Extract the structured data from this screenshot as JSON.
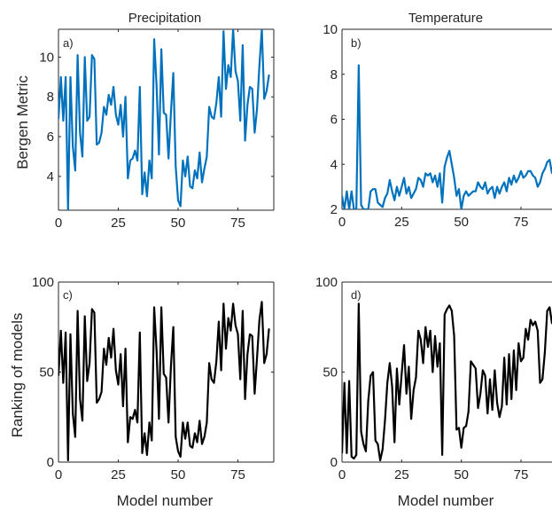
{
  "colors": {
    "blue": "#0072BD",
    "black": "#000000",
    "axis": "#262626"
  },
  "chart_data": [
    {
      "type": "line",
      "title": "Precipitation",
      "ylabel": "Bergen Metric",
      "xlabel": "",
      "panel_label": "a)",
      "xlim": [
        0,
        90
      ],
      "ylim": [
        2.3,
        11.4
      ],
      "xticks": [
        0,
        25,
        50,
        75
      ],
      "yticks": [
        4,
        6,
        8,
        10
      ],
      "grid": false,
      "color": "#0072BD",
      "series": [
        {
          "values": [
            6.9,
            9.0,
            6.8,
            9.0,
            2.3,
            9.0,
            5.5,
            4.3,
            10.1,
            6.2,
            5.0,
            10.0,
            6.8,
            7.0,
            10.1,
            9.9,
            5.6,
            5.7,
            6.2,
            7.5,
            7.1,
            8.1,
            7.6,
            8.5,
            7.1,
            6.6,
            7.6,
            6.0,
            8.0,
            3.9,
            4.8,
            4.9,
            5.3,
            4.8,
            8.5,
            3.1,
            4.2,
            3.0,
            4.8,
            3.9,
            10.9,
            8.6,
            5.1,
            10.4,
            7.2,
            7.1,
            4.9,
            7.2,
            9.2,
            4.5,
            2.8,
            2.5,
            4.8,
            4.0,
            5.0,
            3.5,
            3.4,
            4.3,
            3.9,
            5.2,
            3.7,
            4.4,
            5.0,
            7.5,
            7.0,
            6.9,
            7.7,
            9.0,
            7.0,
            11.3,
            8.4,
            9.6,
            9.0,
            11.4,
            9.3,
            8.8,
            6.8,
            10.6,
            5.8,
            7.6,
            8.5,
            8.4,
            6.2,
            7.4,
            9.6,
            11.4,
            7.9,
            8.3,
            9.1
          ]
        }
      ]
    },
    {
      "type": "line",
      "title": "Temperature",
      "ylabel": "",
      "xlabel": "",
      "panel_label": "b)",
      "xlim": [
        0,
        88
      ],
      "ylim": [
        2,
        10
      ],
      "xticks": [
        0,
        25,
        50,
        75
      ],
      "yticks": [
        2,
        4,
        6,
        8,
        10
      ],
      "grid": false,
      "color": "#0072BD",
      "series": [
        {
          "values": [
            2.6,
            2.0,
            2.8,
            2.0,
            2.8,
            2.0,
            2.0,
            8.4,
            2.2,
            2.0,
            2.0,
            2.0,
            2.8,
            2.9,
            2.9,
            2.3,
            2.2,
            2.1,
            2.5,
            2.7,
            3.3,
            2.8,
            2.4,
            3.0,
            2.6,
            3.0,
            3.4,
            2.7,
            3.0,
            2.5,
            2.7,
            2.9,
            3.4,
            3.3,
            3.0,
            3.6,
            3.5,
            3.6,
            3.2,
            3.5,
            3.0,
            3.6,
            2.3,
            3.9,
            4.3,
            4.6,
            4.0,
            3.4,
            2.6,
            2.9,
            2.0,
            2.6,
            2.8,
            2.6,
            2.7,
            2.8,
            2.8,
            3.2,
            3.0,
            2.9,
            3.2,
            2.7,
            2.9,
            3.0,
            2.5,
            3.0,
            2.7,
            3.0,
            3.2,
            2.8,
            3.4,
            3.1,
            3.5,
            3.2,
            3.4,
            3.7,
            3.4,
            3.5,
            3.7,
            3.7,
            3.5,
            3.4,
            3.0,
            3.2,
            3.6,
            3.8,
            4.1,
            4.2,
            3.6
          ]
        }
      ]
    },
    {
      "type": "line",
      "title": "",
      "ylabel": "Ranking of models",
      "xlabel": "Model number",
      "panel_label": "c)",
      "xlim": [
        0,
        90
      ],
      "ylim": [
        0,
        100
      ],
      "xticks": [
        0,
        25,
        50,
        75
      ],
      "yticks": [
        0,
        50,
        100
      ],
      "grid": false,
      "color": "#000000",
      "series": [
        {
          "values": [
            48,
            73,
            44,
            72,
            1,
            71,
            27,
            14,
            84,
            35,
            23,
            81,
            45,
            55,
            85,
            83,
            33,
            35,
            39,
            63,
            54,
            69,
            58,
            74,
            51,
            43,
            60,
            31,
            63,
            11,
            25,
            24,
            29,
            22,
            72,
            5,
            16,
            4,
            22,
            12,
            86,
            62,
            24,
            86,
            49,
            47,
            22,
            53,
            75,
            14,
            6,
            3,
            22,
            13,
            22,
            9,
            8,
            16,
            11,
            23,
            10,
            14,
            22,
            55,
            46,
            44,
            56,
            78,
            51,
            88,
            63,
            80,
            73,
            88,
            76,
            71,
            46,
            84,
            35,
            60,
            71,
            70,
            38,
            58,
            79,
            89,
            55,
            60,
            74
          ]
        }
      ]
    },
    {
      "type": "line",
      "title": "",
      "ylabel": "",
      "xlabel": "Model number",
      "panel_label": "d)",
      "xlim": [
        0,
        88
      ],
      "ylim": [
        0,
        100
      ],
      "xticks": [
        0,
        25,
        50,
        75
      ],
      "yticks": [
        0,
        50,
        100
      ],
      "grid": false,
      "color": "#000000",
      "series": [
        {
          "values": [
            5,
            44,
            5,
            45,
            3,
            2,
            4,
            88,
            17,
            10,
            6,
            34,
            48,
            50,
            12,
            10,
            1,
            7,
            23,
            44,
            55,
            42,
            11,
            52,
            32,
            49,
            65,
            38,
            53,
            24,
            40,
            47,
            73,
            68,
            55,
            75,
            64,
            73,
            50,
            70,
            53,
            66,
            4,
            82,
            85,
            87,
            84,
            70,
            18,
            19,
            8,
            19,
            20,
            28,
            56,
            54,
            52,
            30,
            38,
            51,
            48,
            27,
            46,
            29,
            51,
            33,
            25,
            31,
            58,
            32,
            60,
            35,
            62,
            40,
            66,
            56,
            58,
            74,
            68,
            79,
            76,
            78,
            73,
            44,
            46,
            61,
            84,
            86,
            77
          ]
        }
      ]
    }
  ]
}
